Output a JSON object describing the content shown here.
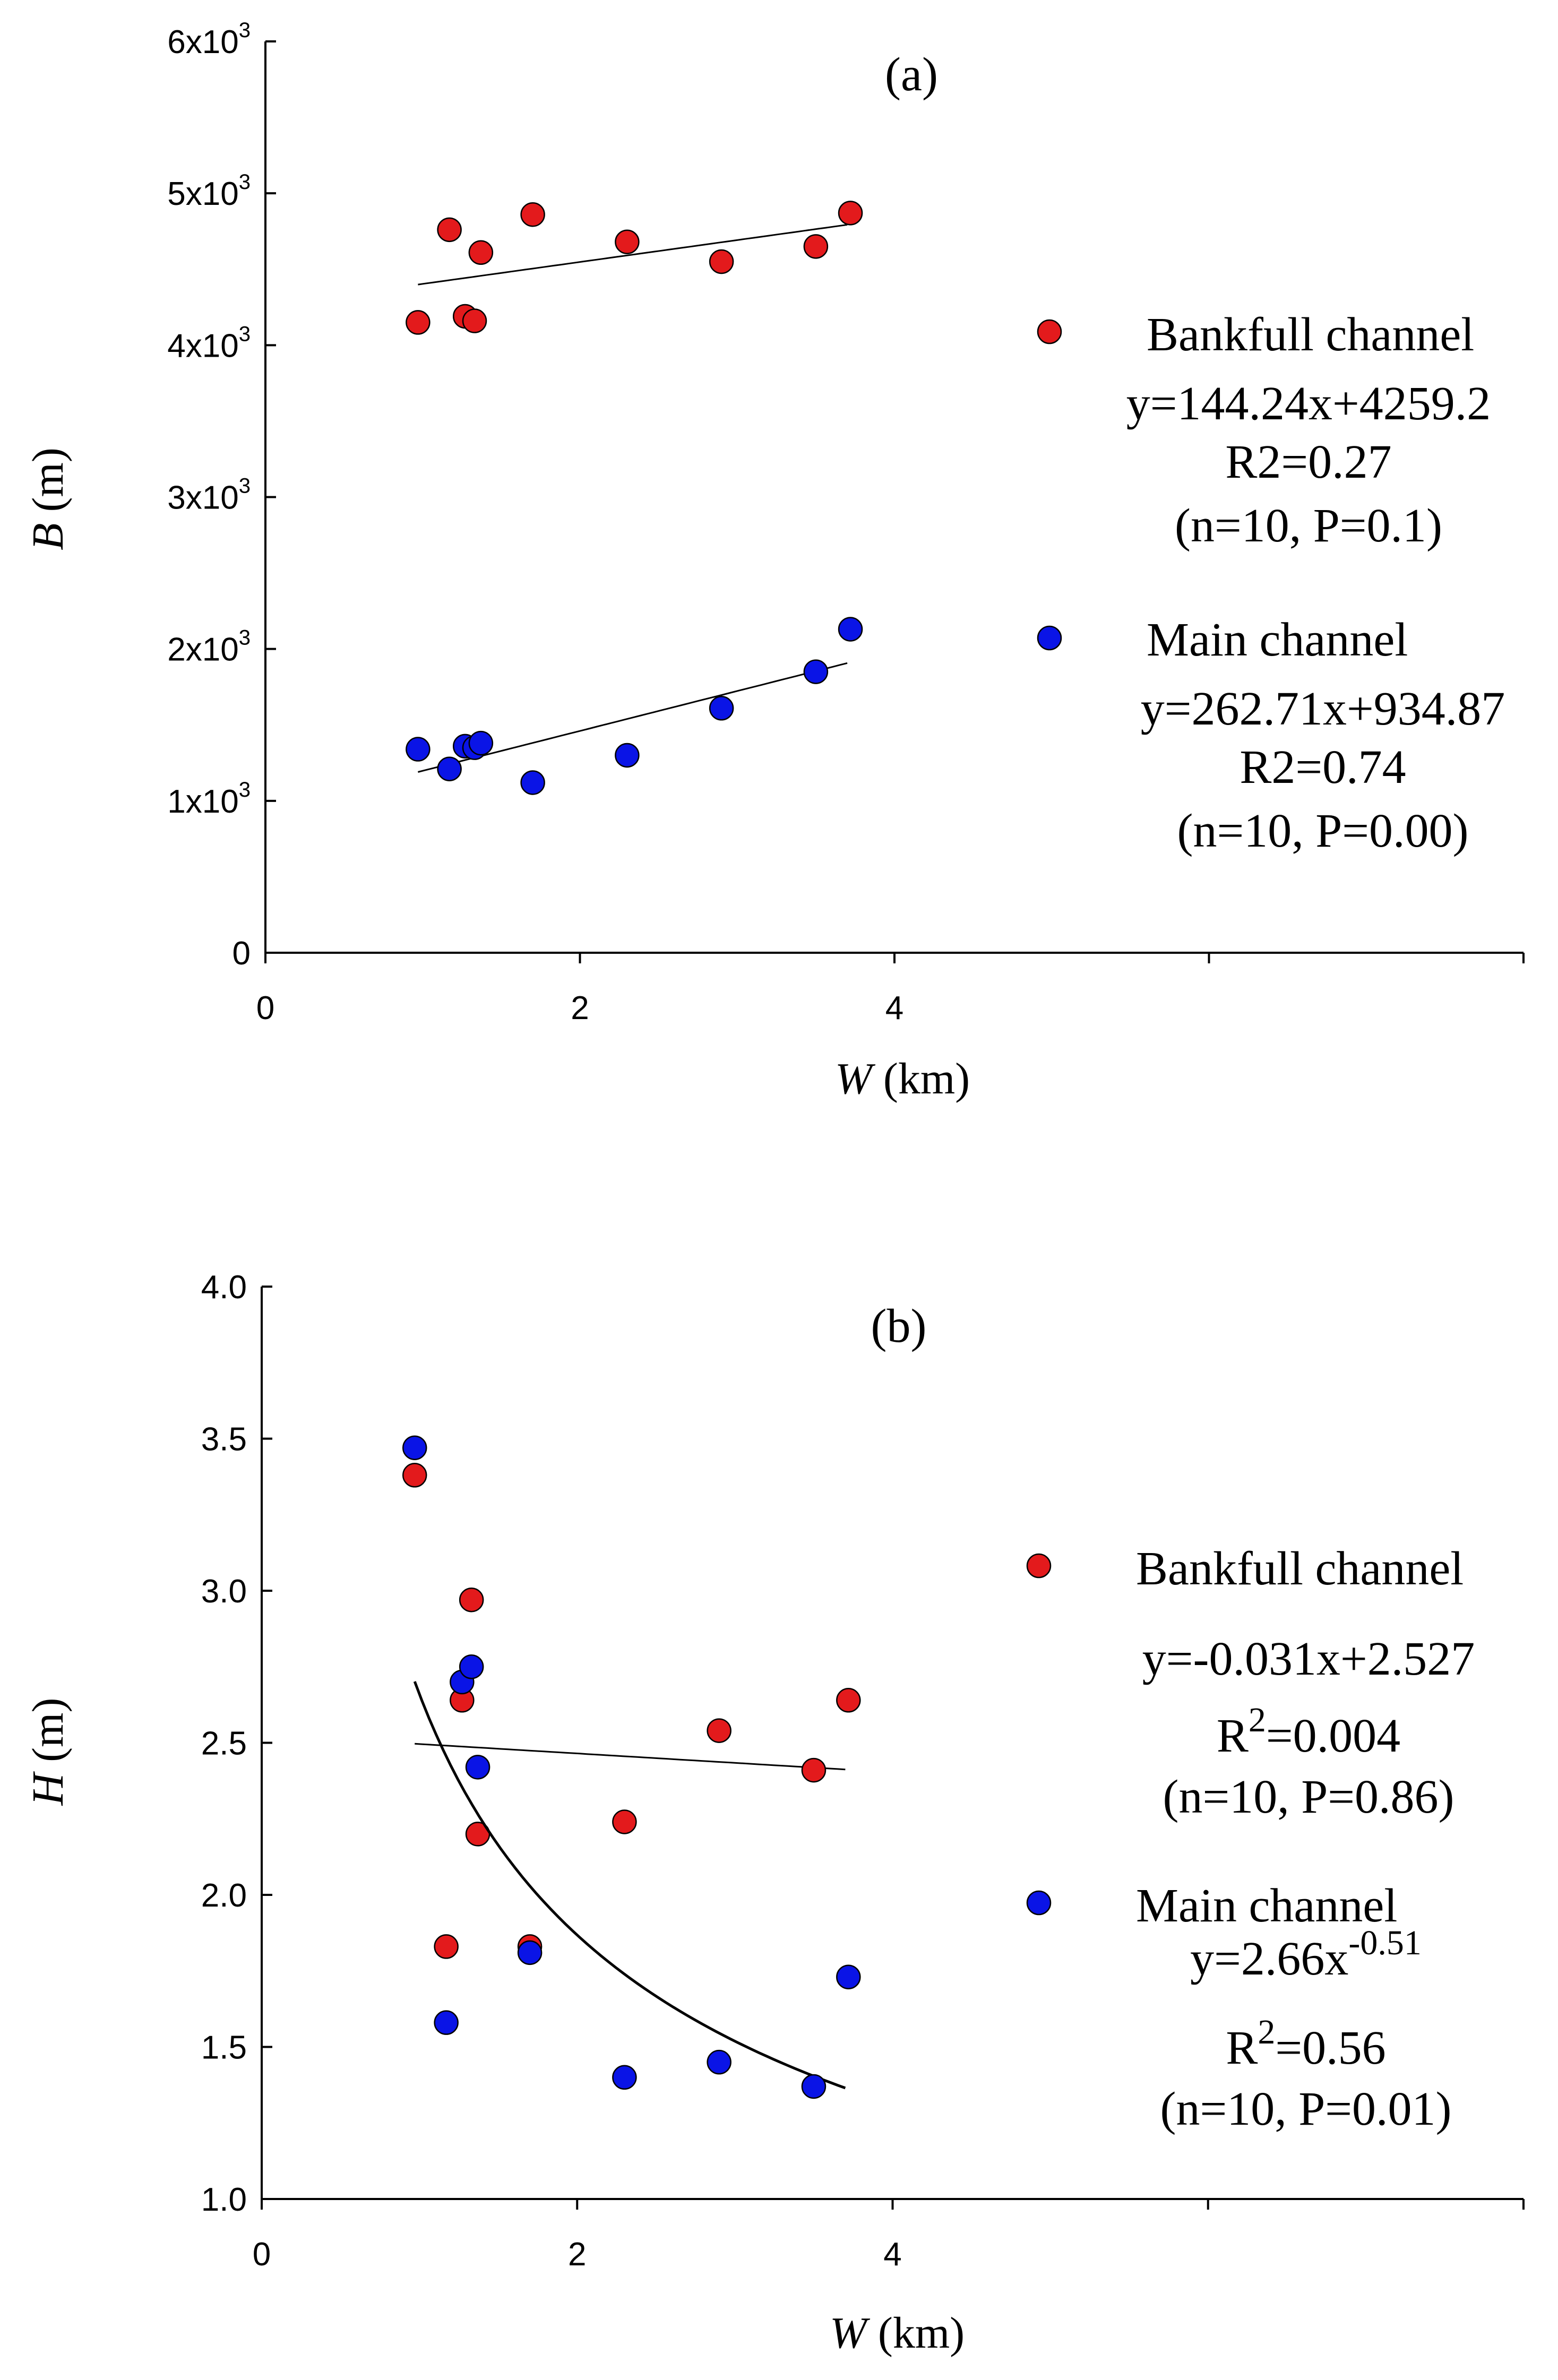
{
  "colors": {
    "bankfull": "#e31a1c",
    "main": "#0a14e6",
    "axis": "#000000"
  },
  "chart_data": [
    {
      "type": "scatter",
      "panel_label": "(a)",
      "xlabel_var": "W",
      "xlabel_unit": " (km)",
      "ylabel_var": "B",
      "ylabel_unit": " (m)",
      "xlim": [
        0,
        8
      ],
      "ylim": [
        0,
        6000
      ],
      "xticks": [
        {
          "v": 0,
          "label": "0"
        },
        {
          "v": 2,
          "label": "2"
        },
        {
          "v": 4,
          "label": "4"
        }
      ],
      "yticks": [
        {
          "v": 0,
          "base": "0",
          "exp": ""
        },
        {
          "v": 1000,
          "base": "1x10",
          "exp": "3"
        },
        {
          "v": 2000,
          "base": "2x10",
          "exp": "3"
        },
        {
          "v": 3000,
          "base": "3x10",
          "exp": "3"
        },
        {
          "v": 4000,
          "base": "4x10",
          "exp": "3"
        },
        {
          "v": 5000,
          "base": "5x10",
          "exp": "3"
        },
        {
          "v": 6000,
          "base": "6x10",
          "exp": "3"
        }
      ],
      "series": [
        {
          "name": "Bankfull channel",
          "color_key": "bankfull",
          "x": [
            0.97,
            1.17,
            1.27,
            1.33,
            1.37,
            1.7,
            2.3,
            2.9,
            3.5,
            3.72
          ],
          "y": [
            4150,
            4760,
            4190,
            4160,
            4610,
            4860,
            4680,
            4550,
            4650,
            4870
          ],
          "fit": {
            "kind": "linear",
            "slope": 144.24,
            "intercept": 4259.2,
            "xrange": [
              0.97,
              3.7
            ]
          },
          "eq": "y=144.24x+4259.2",
          "r2_base": "R2",
          "r2_sup": "",
          "r2_val": "=0.27",
          "stats": "(n=10, P=0.1)"
        },
        {
          "name": "Main channel",
          "color_key": "main",
          "x": [
            0.97,
            1.17,
            1.27,
            1.33,
            1.37,
            1.7,
            2.3,
            2.9,
            3.5,
            3.72
          ],
          "y": [
            1340,
            1210,
            1360,
            1350,
            1380,
            1120,
            1300,
            1610,
            1850,
            2130
          ],
          "fit": {
            "kind": "linear",
            "slope": 262.71,
            "intercept": 934.87,
            "xrange": [
              0.97,
              3.7
            ]
          },
          "eq": "y=262.71x+934.87",
          "r2_base": "R2",
          "r2_sup": "",
          "r2_val": "=0.74",
          "stats": "(n=10, P=0.00)"
        }
      ]
    },
    {
      "type": "scatter",
      "panel_label": "(b)",
      "xlabel_var": "W",
      "xlabel_unit": " (km)",
      "ylabel_var": "H",
      "ylabel_unit": " (m)",
      "xlim": [
        0,
        8
      ],
      "ylim": [
        1.0,
        4.0
      ],
      "xticks": [
        {
          "v": 0,
          "label": "0"
        },
        {
          "v": 2,
          "label": "2"
        },
        {
          "v": 4,
          "label": "4"
        }
      ],
      "yticks": [
        {
          "v": 1.0,
          "base": "1.0",
          "exp": ""
        },
        {
          "v": 1.5,
          "base": "1.5",
          "exp": ""
        },
        {
          "v": 2.0,
          "base": "2.0",
          "exp": ""
        },
        {
          "v": 2.5,
          "base": "2.5",
          "exp": ""
        },
        {
          "v": 3.0,
          "base": "3.0",
          "exp": ""
        },
        {
          "v": 3.5,
          "base": "3.5",
          "exp": ""
        },
        {
          "v": 4.0,
          "base": "4.0",
          "exp": ""
        }
      ],
      "series": [
        {
          "name": "Bankfull channel",
          "color_key": "bankfull",
          "x": [
            0.97,
            1.17,
            1.27,
            1.33,
            1.37,
            1.7,
            2.3,
            2.9,
            3.5,
            3.72
          ],
          "y": [
            3.38,
            1.83,
            2.64,
            2.97,
            2.2,
            1.83,
            2.24,
            2.54,
            2.41,
            2.64
          ],
          "fit": {
            "kind": "linear",
            "slope": -0.031,
            "intercept": 2.527,
            "xrange": [
              0.97,
              3.7
            ]
          },
          "eq": "y=-0.031x+2.527",
          "r2_base": "R",
          "r2_sup": "2",
          "r2_val": "=0.004",
          "stats": "(n=10, P=0.86)"
        },
        {
          "name": "Main channel",
          "color_key": "main",
          "x": [
            0.97,
            1.17,
            1.27,
            1.33,
            1.37,
            1.7,
            2.3,
            2.9,
            3.5,
            3.72
          ],
          "y": [
            3.47,
            1.58,
            2.7,
            2.75,
            2.42,
            1.81,
            1.4,
            1.45,
            1.37,
            1.73
          ],
          "fit": {
            "kind": "power",
            "a": 2.66,
            "b": -0.51,
            "xrange": [
              0.97,
              3.7
            ]
          },
          "eq": "y=2.66x",
          "eq_sup": "-0.51",
          "r2_base": "R",
          "r2_sup": "2",
          "r2_val": "=0.56",
          "stats": "(n=10, P=0.01)"
        }
      ]
    }
  ]
}
